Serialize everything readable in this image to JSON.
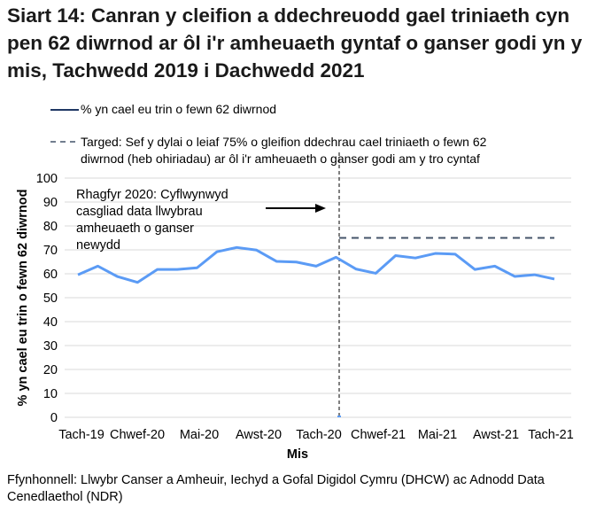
{
  "chart_data": {
    "type": "line",
    "title": "Siart 14: Canran y cleifion a ddechreuodd gael triniaeth cyn pen 62 diwrnod ar ôl i'r amheuaeth gyntaf o ganser godi yn y mis, Tachwedd 2019 i Dachwedd 2021",
    "xlabel": "Mis",
    "ylabel": "% yn cael eu trin o fewn 62 diwrnod",
    "ylim": [
      0,
      100
    ],
    "yticks": [
      0,
      10,
      20,
      30,
      40,
      50,
      60,
      70,
      80,
      90,
      100
    ],
    "x_tick_labels": [
      "Tach-19",
      "Chwef-20",
      "Mai-20",
      "Awst-20",
      "Tach-20",
      "Chwef-21",
      "Mai-21",
      "Awst-21",
      "Tach-21"
    ],
    "grid": true,
    "legend_position": "top",
    "series": [
      {
        "name": "% yn cael eu trin o fewn 62 diwrnod",
        "color": "#5b9bf5",
        "style": "solid",
        "values": [
          59.6,
          63.2,
          58.8,
          56.4,
          61.8,
          61.8,
          62.5,
          69.2,
          71.0,
          69.9,
          65.2,
          64.9,
          63.2,
          66.9,
          62.0,
          60.2,
          67.6,
          66.6,
          68.5,
          68.2,
          61.8,
          63.2,
          58.9,
          59.6,
          57.8
        ]
      },
      {
        "name": "Targed: Sef y dylai o leiaf 75% o gleifion ddechrau cael triniaeth o fewn 62 diwrnod (heb ohiriadau) ar ôl i'r amheuaeth o ganser godi am y tro cyntaf",
        "color": "#44546a",
        "style": "dashed",
        "value": 75,
        "start_index": 13
      }
    ],
    "legend_lines": [
      [
        "% yn cael eu trin o fewn 62 diwrnod"
      ],
      [
        "Targed: Sef y dylai o leiaf 75% o gleifion ddechrau cael triniaeth o fewn 62",
        "diwrnod (heb ohiriadau) ar ôl i'r amheuaeth o ganser godi am y tro cyntaf"
      ]
    ],
    "annotation": {
      "lines": [
        "Rhagfyr 2020: Cyflwynwyd",
        "casgliad data llwybrau",
        "amheuaeth o ganser",
        "newydd"
      ],
      "marker_index": 13
    }
  },
  "source": "Ffynhonnell: Llwybr Canser a Amheuir, Iechyd a Gofal Digidol Cymru (DHCW) ac Adnodd Data Cenedlaethol (NDR)"
}
